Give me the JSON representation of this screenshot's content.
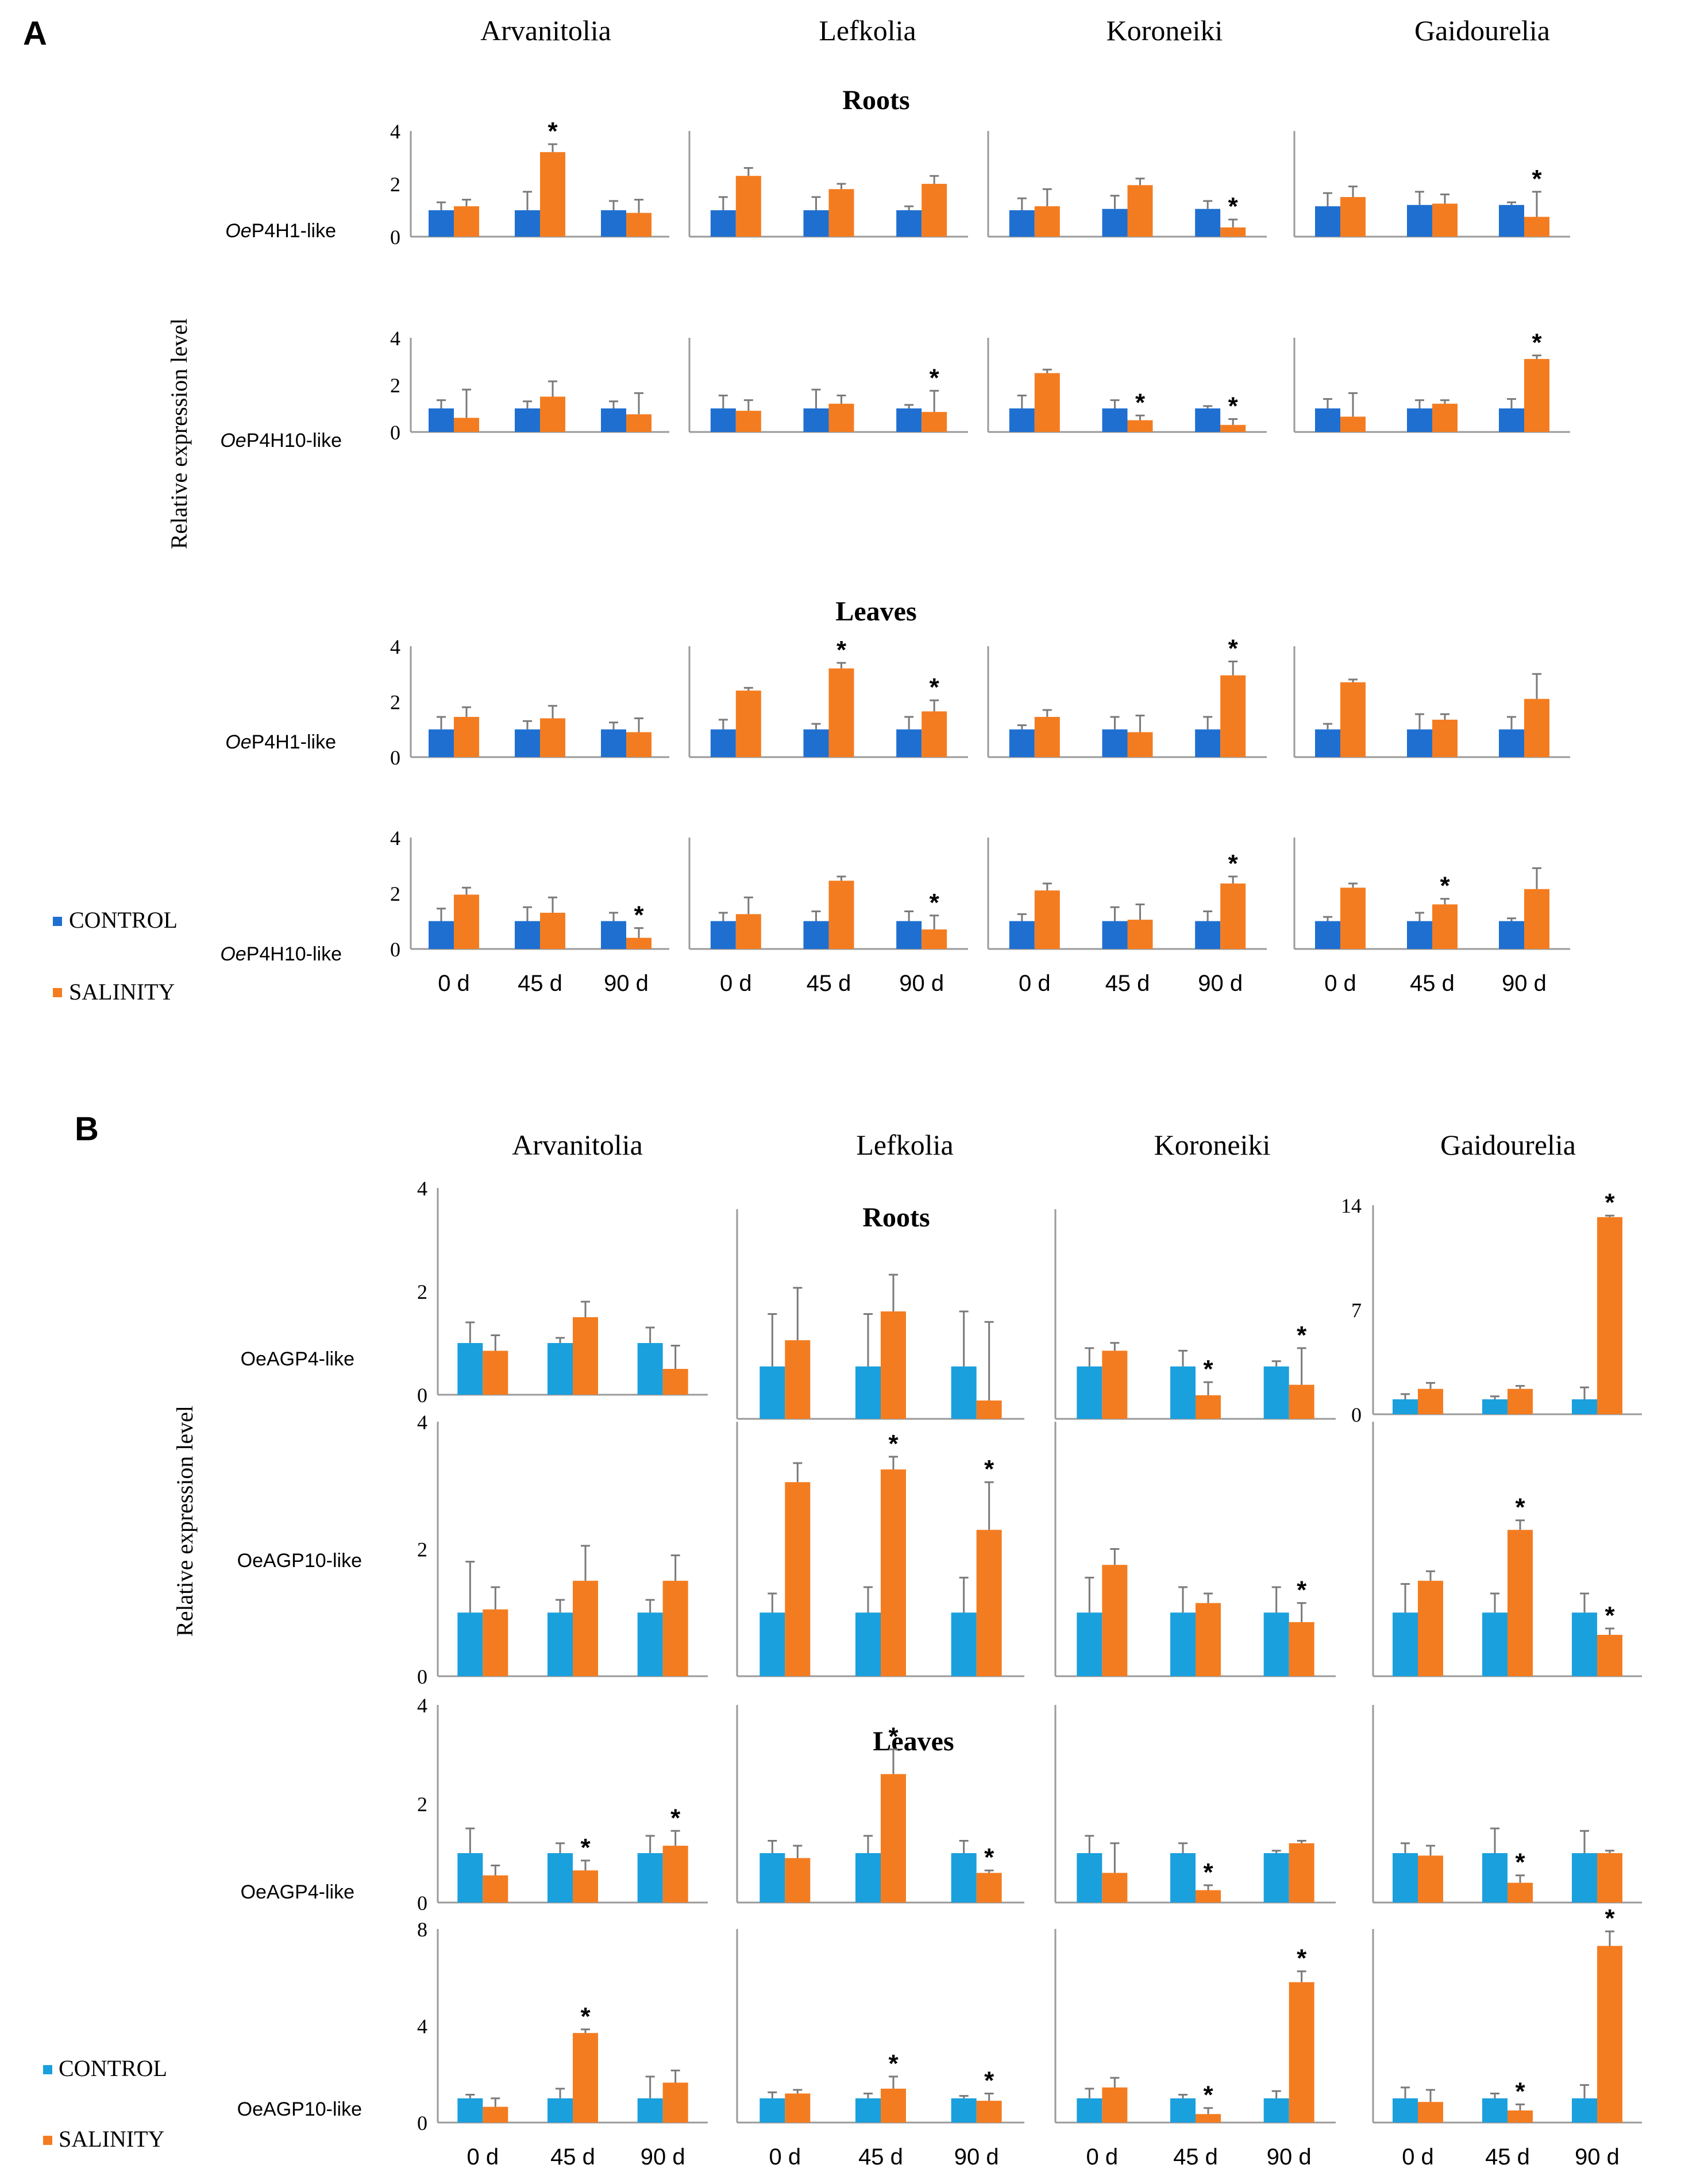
{
  "panels": {
    "A": {
      "label": "A",
      "cultivars": [
        "Arvanitolia",
        "Lefkolia",
        "Koroneiki",
        "Gaidourelia"
      ],
      "section_labels": [
        "Roots",
        "Leaves"
      ],
      "ylabel": "Relative expression level",
      "legend": [
        "CONTROL",
        "SALINITY"
      ],
      "xlabels": [
        "0 d",
        "45 d",
        "90 d"
      ],
      "row_labels": [
        {
          "prefix": "Oe",
          "rest": "P4H1-like"
        },
        {
          "prefix": "Oe",
          "rest": "P4H10-like"
        },
        {
          "prefix": "Oe",
          "rest": "P4H1-like"
        },
        {
          "prefix": "Oe",
          "rest": "P4H10-like"
        }
      ],
      "tick_labels": [
        "0",
        "2",
        "4"
      ]
    },
    "B": {
      "label": "B",
      "cultivars": [
        "Arvanitolia",
        "Lefkolia",
        "Koroneiki",
        "Gaidourelia"
      ],
      "section_labels": [
        "Roots",
        "Leaves"
      ],
      "ylabel": "Relative expression level",
      "legend": [
        "CONTROL",
        "SALINITY"
      ],
      "xlabels": [
        "0 d",
        "45 d",
        "90 d"
      ],
      "row_labels": [
        "OeAGP4-like",
        "OeAGP10-like",
        "OeAGP4-like",
        "OeAGP10-like"
      ],
      "tick_labels_rows": [
        [
          "0",
          "2",
          "4"
        ],
        [
          "0",
          "2",
          "4"
        ],
        [
          "0",
          "2",
          "4"
        ],
        [
          "0",
          "4",
          "8"
        ]
      ],
      "tick_labels_gaid_roots": [
        "0",
        "7",
        "14"
      ]
    }
  },
  "colors": {
    "control_A": "#1f6fd1",
    "control_B": "#1aa0dd",
    "salinity": "#f47c20",
    "axis": "#9a9a9a",
    "error_bar": "#7a7a7a"
  },
  "chart_data": [
    {
      "type": "bar",
      "panel": "A",
      "title": "Roots",
      "gene": "OeP4H1-like",
      "categories": [
        "0 d",
        "45 d",
        "90 d"
      ],
      "ylim": [
        0,
        4
      ],
      "cultivars": {
        "Arvanitolia": {
          "control": [
            1.0,
            1.0,
            1.0
          ],
          "salinity": [
            1.15,
            3.2,
            0.9
          ],
          "control_err": [
            0.3,
            0.7,
            0.35
          ],
          "salinity_err": [
            0.25,
            0.3,
            0.5
          ],
          "significant": [
            false,
            true,
            false
          ]
        },
        "Lefkolia": {
          "control": [
            1.0,
            1.0,
            1.0
          ],
          "salinity": [
            2.3,
            1.8,
            2.0
          ],
          "control_err": [
            0.5,
            0.5,
            0.15
          ],
          "salinity_err": [
            0.3,
            0.2,
            0.3
          ],
          "significant": [
            false,
            false,
            false
          ]
        },
        "Koroneiki": {
          "control": [
            1.0,
            1.05,
            1.05
          ],
          "salinity": [
            1.15,
            1.95,
            0.35
          ],
          "control_err": [
            0.45,
            0.5,
            0.3
          ],
          "salinity_err": [
            0.65,
            0.25,
            0.3
          ],
          "significant": [
            false,
            false,
            true
          ]
        },
        "Gaidourelia": {
          "control": [
            1.15,
            1.2,
            1.2
          ],
          "salinity": [
            1.5,
            1.25,
            0.75
          ],
          "control_err": [
            0.5,
            0.5,
            0.1
          ],
          "salinity_err": [
            0.4,
            0.35,
            0.95
          ],
          "significant": [
            false,
            false,
            true
          ]
        }
      }
    },
    {
      "type": "bar",
      "panel": "A",
      "title": "Roots",
      "gene": "OeP4H10-like",
      "categories": [
        "0 d",
        "45 d",
        "90 d"
      ],
      "ylim": [
        0,
        4
      ],
      "cultivars": {
        "Arvanitolia": {
          "control": [
            1.0,
            1.0,
            1.0
          ],
          "salinity": [
            0.6,
            1.5,
            0.75
          ],
          "control_err": [
            0.35,
            0.3,
            0.3
          ],
          "salinity_err": [
            1.2,
            0.65,
            0.9
          ],
          "significant": [
            false,
            false,
            false
          ]
        },
        "Lefkolia": {
          "control": [
            1.0,
            1.0,
            1.0
          ],
          "salinity": [
            0.9,
            1.2,
            0.85
          ],
          "control_err": [
            0.55,
            0.8,
            0.15
          ],
          "salinity_err": [
            0.45,
            0.35,
            0.9
          ],
          "significant": [
            false,
            false,
            true
          ]
        },
        "Koroneiki": {
          "control": [
            1.0,
            1.0,
            1.0
          ],
          "salinity": [
            2.5,
            0.5,
            0.3
          ],
          "control_err": [
            0.55,
            0.35,
            0.1
          ],
          "salinity_err": [
            0.15,
            0.2,
            0.25
          ],
          "significant": [
            false,
            true,
            true
          ]
        },
        "Gaidourelia": {
          "control": [
            1.0,
            1.0,
            1.0
          ],
          "salinity": [
            0.65,
            1.2,
            3.1
          ],
          "control_err": [
            0.4,
            0.35,
            0.4
          ],
          "salinity_err": [
            1.0,
            0.15,
            0.15
          ],
          "significant": [
            false,
            false,
            true
          ]
        }
      }
    },
    {
      "type": "bar",
      "panel": "A",
      "title": "Leaves",
      "gene": "OeP4H1-like",
      "categories": [
        "0 d",
        "45 d",
        "90 d"
      ],
      "ylim": [
        0,
        4
      ],
      "cultivars": {
        "Arvanitolia": {
          "control": [
            1.0,
            1.0,
            1.0
          ],
          "salinity": [
            1.45,
            1.4,
            0.9
          ],
          "control_err": [
            0.45,
            0.3,
            0.25
          ],
          "salinity_err": [
            0.35,
            0.45,
            0.5
          ],
          "significant": [
            false,
            false,
            false
          ]
        },
        "Lefkolia": {
          "control": [
            1.0,
            1.0,
            1.0
          ],
          "salinity": [
            2.4,
            3.2,
            1.65
          ],
          "control_err": [
            0.35,
            0.2,
            0.45
          ],
          "salinity_err": [
            0.1,
            0.2,
            0.4
          ],
          "significant": [
            false,
            true,
            true
          ]
        },
        "Koroneiki": {
          "control": [
            1.0,
            1.0,
            1.0
          ],
          "salinity": [
            1.45,
            0.9,
            2.95
          ],
          "control_err": [
            0.15,
            0.45,
            0.45
          ],
          "salinity_err": [
            0.25,
            0.6,
            0.5
          ],
          "significant": [
            false,
            false,
            true
          ]
        },
        "Gaidourelia": {
          "control": [
            1.0,
            1.0,
            1.0
          ],
          "salinity": [
            2.7,
            1.35,
            2.1
          ],
          "control_err": [
            0.2,
            0.55,
            0.45
          ],
          "salinity_err": [
            0.1,
            0.2,
            0.9
          ],
          "significant": [
            false,
            false,
            false
          ]
        }
      }
    },
    {
      "type": "bar",
      "panel": "A",
      "title": "Leaves",
      "gene": "OeP4H10-like",
      "categories": [
        "0 d",
        "45 d",
        "90 d"
      ],
      "ylim": [
        0,
        4
      ],
      "cultivars": {
        "Arvanitolia": {
          "control": [
            1.0,
            1.0,
            1.0
          ],
          "salinity": [
            1.95,
            1.3,
            0.4
          ],
          "control_err": [
            0.45,
            0.5,
            0.3
          ],
          "salinity_err": [
            0.25,
            0.55,
            0.35
          ],
          "significant": [
            false,
            false,
            true
          ]
        },
        "Lefkolia": {
          "control": [
            1.0,
            1.0,
            1.0
          ],
          "salinity": [
            1.25,
            2.45,
            0.7
          ],
          "control_err": [
            0.3,
            0.35,
            0.35
          ],
          "salinity_err": [
            0.6,
            0.15,
            0.5
          ],
          "significant": [
            false,
            false,
            true
          ]
        },
        "Koroneiki": {
          "control": [
            1.0,
            1.0,
            1.0
          ],
          "salinity": [
            2.1,
            1.05,
            2.35
          ],
          "control_err": [
            0.25,
            0.5,
            0.35
          ],
          "salinity_err": [
            0.25,
            0.55,
            0.25
          ],
          "significant": [
            false,
            false,
            true
          ]
        },
        "Gaidourelia": {
          "control": [
            1.0,
            1.0,
            1.0
          ],
          "salinity": [
            2.2,
            1.6,
            2.15
          ],
          "control_err": [
            0.15,
            0.3,
            0.1
          ],
          "salinity_err": [
            0.15,
            0.2,
            0.75
          ],
          "significant": [
            false,
            true,
            false
          ]
        }
      }
    },
    {
      "type": "bar",
      "panel": "B",
      "title": "Roots",
      "gene": "OeAGP4-like",
      "categories": [
        "0 d",
        "45 d",
        "90 d"
      ],
      "cultivars": {
        "Arvanitolia": {
          "ylim": [
            0,
            4
          ],
          "control": [
            1.0,
            1.0,
            1.0
          ],
          "salinity": [
            0.85,
            1.5,
            0.5
          ],
          "control_err": [
            0.4,
            0.1,
            0.3
          ],
          "salinity_err": [
            0.3,
            0.3,
            0.45
          ],
          "significant": [
            false,
            false,
            false
          ]
        },
        "Lefkolia": {
          "ylim": [
            0,
            4
          ],
          "control": [
            1.0,
            1.0,
            1.0
          ],
          "salinity": [
            1.5,
            2.05,
            0.35
          ],
          "control_err": [
            1.0,
            1.0,
            1.05
          ],
          "salinity_err": [
            1.0,
            0.7,
            1.5
          ],
          "significant": [
            false,
            false,
            false
          ]
        },
        "Koroneiki": {
          "ylim": [
            0,
            4
          ],
          "control": [
            1.0,
            1.0,
            1.0
          ],
          "salinity": [
            1.3,
            0.45,
            0.65
          ],
          "control_err": [
            0.35,
            0.3,
            0.1
          ],
          "salinity_err": [
            0.15,
            0.25,
            0.7
          ],
          "significant": [
            false,
            true,
            true
          ]
        },
        "Gaidourelia": {
          "ylim": [
            0,
            14
          ],
          "control": [
            1.0,
            1.0,
            1.0
          ],
          "salinity": [
            1.7,
            1.7,
            13.2
          ],
          "control_err": [
            0.35,
            0.2,
            0.8
          ],
          "salinity_err": [
            0.4,
            0.2,
            0.1
          ],
          "significant": [
            false,
            false,
            true
          ]
        }
      }
    },
    {
      "type": "bar",
      "panel": "B",
      "title": "Roots",
      "gene": "OeAGP10-like",
      "categories": [
        "0 d",
        "45 d",
        "90 d"
      ],
      "ylim": [
        0,
        4
      ],
      "cultivars": {
        "Arvanitolia": {
          "control": [
            1.0,
            1.0,
            1.0
          ],
          "salinity": [
            1.05,
            1.5,
            1.5
          ],
          "control_err": [
            0.8,
            0.2,
            0.2
          ],
          "salinity_err": [
            0.35,
            0.55,
            0.4
          ],
          "significant": [
            false,
            false,
            false
          ]
        },
        "Lefkolia": {
          "control": [
            1.0,
            1.0,
            1.0
          ],
          "salinity": [
            3.05,
            3.25,
            2.3
          ],
          "control_err": [
            0.3,
            0.4,
            0.55
          ],
          "salinity_err": [
            0.3,
            0.2,
            0.75
          ],
          "significant": [
            false,
            true,
            true
          ]
        },
        "Koroneiki": {
          "control": [
            1.0,
            1.0,
            1.0
          ],
          "salinity": [
            1.75,
            1.15,
            0.85
          ],
          "control_err": [
            0.55,
            0.4,
            0.4
          ],
          "salinity_err": [
            0.25,
            0.15,
            0.3
          ],
          "significant": [
            false,
            false,
            true
          ]
        },
        "Gaidourelia": {
          "control": [
            1.0,
            1.0,
            1.0
          ],
          "salinity": [
            1.5,
            2.3,
            0.65
          ],
          "control_err": [
            0.45,
            0.3,
            0.3
          ],
          "salinity_err": [
            0.15,
            0.15,
            0.1
          ],
          "significant": [
            false,
            true,
            true
          ]
        }
      }
    },
    {
      "type": "bar",
      "panel": "B",
      "title": "Leaves",
      "gene": "OeAGP4-like",
      "categories": [
        "0 d",
        "45 d",
        "90 d"
      ],
      "ylim": [
        0,
        4
      ],
      "cultivars": {
        "Arvanitolia": {
          "control": [
            1.0,
            1.0,
            1.0
          ],
          "salinity": [
            0.55,
            0.65,
            1.15
          ],
          "control_err": [
            0.5,
            0.2,
            0.35
          ],
          "salinity_err": [
            0.2,
            0.2,
            0.3
          ],
          "significant": [
            false,
            true,
            true
          ]
        },
        "Lefkolia": {
          "control": [
            1.0,
            1.0,
            1.0
          ],
          "salinity": [
            0.9,
            2.6,
            0.6
          ],
          "control_err": [
            0.25,
            0.35,
            0.25
          ],
          "salinity_err": [
            0.25,
            0.5,
            0.05
          ],
          "significant": [
            false,
            true,
            true
          ]
        },
        "Koroneiki": {
          "control": [
            1.0,
            1.0,
            1.0
          ],
          "salinity": [
            0.6,
            0.25,
            1.2
          ],
          "control_err": [
            0.35,
            0.2,
            0.05
          ],
          "salinity_err": [
            0.6,
            0.1,
            0.05
          ],
          "significant": [
            false,
            true,
            false
          ]
        },
        "Gaidourelia": {
          "control": [
            1.0,
            1.0,
            1.0
          ],
          "salinity": [
            0.95,
            0.4,
            1.0
          ],
          "control_err": [
            0.2,
            0.5,
            0.45
          ],
          "salinity_err": [
            0.2,
            0.15,
            0.05
          ],
          "significant": [
            false,
            true,
            false
          ]
        }
      }
    },
    {
      "type": "bar",
      "panel": "B",
      "title": "Leaves",
      "gene": "OeAGP10-like",
      "categories": [
        "0 d",
        "45 d",
        "90 d"
      ],
      "ylim": [
        0,
        8
      ],
      "cultivars": {
        "Arvanitolia": {
          "control": [
            1.0,
            1.0,
            1.0
          ],
          "salinity": [
            0.65,
            3.7,
            1.65
          ],
          "control_err": [
            0.15,
            0.4,
            0.9
          ],
          "salinity_err": [
            0.35,
            0.15,
            0.5
          ],
          "significant": [
            false,
            true,
            false
          ]
        },
        "Lefkolia": {
          "control": [
            1.0,
            1.0,
            1.0
          ],
          "salinity": [
            1.2,
            1.4,
            0.9
          ],
          "control_err": [
            0.25,
            0.2,
            0.1
          ],
          "salinity_err": [
            0.15,
            0.5,
            0.3
          ],
          "significant": [
            false,
            true,
            true
          ]
        },
        "Koroneiki": {
          "control": [
            1.0,
            1.0,
            1.0
          ],
          "salinity": [
            1.45,
            0.35,
            5.8
          ],
          "control_err": [
            0.4,
            0.15,
            0.3
          ],
          "salinity_err": [
            0.4,
            0.25,
            0.45
          ],
          "significant": [
            false,
            true,
            true
          ]
        },
        "Gaidourelia": {
          "control": [
            1.0,
            1.0,
            1.0
          ],
          "salinity": [
            0.85,
            0.5,
            7.3
          ],
          "control_err": [
            0.45,
            0.2,
            0.55
          ],
          "salinity_err": [
            0.5,
            0.25,
            0.6
          ],
          "significant": [
            false,
            true,
            true
          ]
        }
      }
    }
  ]
}
